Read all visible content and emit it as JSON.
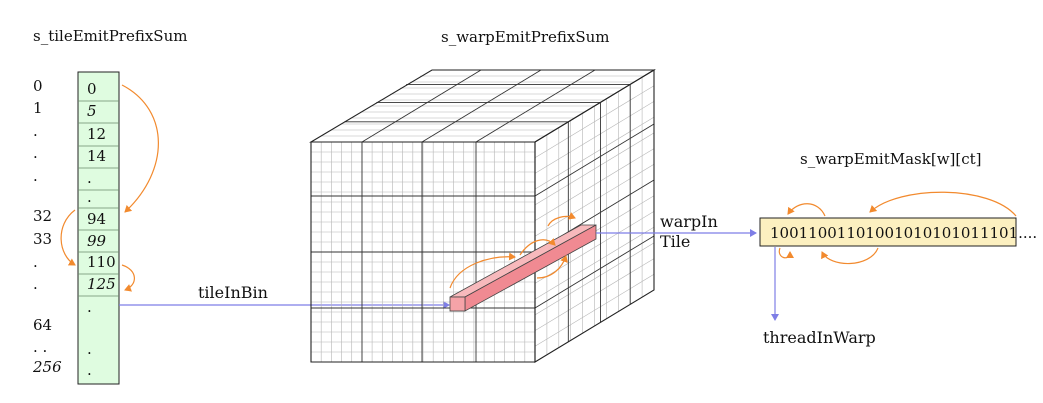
{
  "labels": {
    "tile_array_title": "s_tileEmitPrefixSum",
    "warp_cube_title": "s_warpEmitPrefixSum",
    "mask_title": "s_warpEmitMask[w][ct]",
    "tile_in_bin": "tileInBin",
    "warp_in": "warpIn",
    "tile": "Tile",
    "thread_in_warp": "threadInWarp",
    "mask_bits": "10011001101001010101011101...."
  },
  "tile_indices": [
    "0",
    "1",
    ".",
    ".",
    ".",
    "32",
    "33",
    ".",
    ".",
    "64",
    ". .",
    "256"
  ],
  "tile_cells": [
    "0",
    "5",
    "12",
    "14",
    ".",
    ".",
    "94",
    "99",
    "110",
    "125",
    ".",
    ".",
    "."
  ],
  "colors": {
    "cell_fill": "#dffce0",
    "mask_fill": "#fcf0c0",
    "bar_fill": "#f5a3a8",
    "arrow_orange": "#f28a2e",
    "arrow_blue": "#7e7ee6",
    "grid_dark": "#333333",
    "grid_light": "#b5b5b5"
  },
  "icons": {
    "arrow_head": "triangle-arrowhead"
  }
}
